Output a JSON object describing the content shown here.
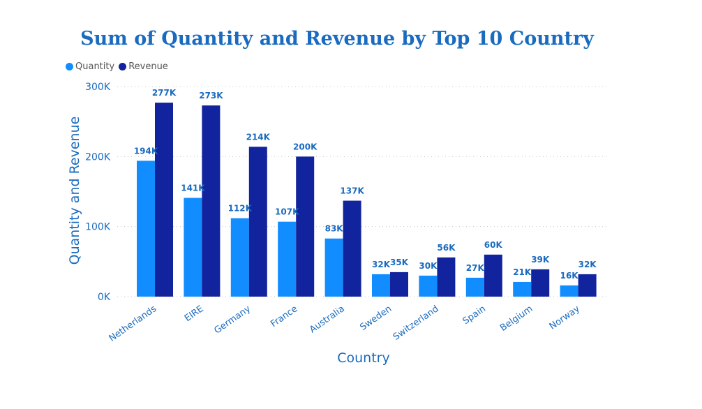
{
  "chart_data": {
    "type": "bar",
    "title": "Sum of Quantity and Revenue by Top 10 Country",
    "xlabel": "Country",
    "ylabel": "Quantity and Revenue",
    "ylim": [
      0,
      300000
    ],
    "yticks": [
      {
        "value": 0,
        "label": "0K"
      },
      {
        "value": 100000,
        "label": "100K"
      },
      {
        "value": 200000,
        "label": "200K"
      },
      {
        "value": 300000,
        "label": "300K"
      }
    ],
    "categories": [
      "Netherlands",
      "EIRE",
      "Germany",
      "France",
      "Australia",
      "Sweden",
      "Switzerland",
      "Spain",
      "Belgium",
      "Norway"
    ],
    "series": [
      {
        "name": "Quantity",
        "color": "#118dff",
        "values": [
          194000,
          141000,
          112000,
          107000,
          83000,
          32000,
          30000,
          27000,
          21000,
          16000
        ],
        "labels": [
          "194K",
          "141K",
          "112K",
          "107K",
          "83K",
          "32K",
          "30K",
          "27K",
          "21K",
          "16K"
        ]
      },
      {
        "name": "Revenue",
        "color": "#12239e",
        "values": [
          277000,
          273000,
          214000,
          200000,
          137000,
          35000,
          56000,
          60000,
          39000,
          32000
        ],
        "labels": [
          "277K",
          "273K",
          "214K",
          "200K",
          "137K",
          "35K",
          "56K",
          "60K",
          "39K",
          "32K"
        ]
      }
    ],
    "legend_position": "top-left",
    "grid": true
  }
}
